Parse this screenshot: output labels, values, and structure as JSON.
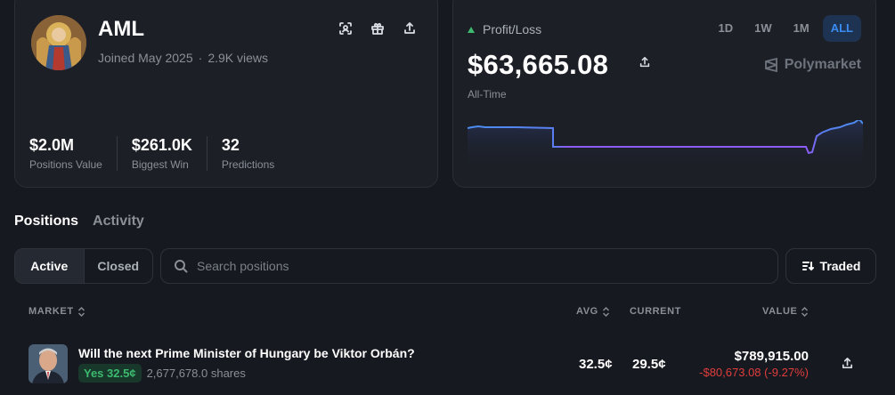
{
  "profile": {
    "username": "AML",
    "joined": "Joined May 2025",
    "views": "2.9K views",
    "stats": [
      {
        "value": "$2.0M",
        "label": "Positions Value"
      },
      {
        "value": "$261.0K",
        "label": "Biggest Win"
      },
      {
        "value": "32",
        "label": "Predictions"
      }
    ],
    "icons": [
      "scan-icon",
      "gift-icon",
      "share-icon"
    ]
  },
  "pnl": {
    "label": "Profit/Loss",
    "value": "$63,665.08",
    "sublabel": "All-Time",
    "brand": "Polymarket",
    "ranges": [
      "1D",
      "1W",
      "1M",
      "ALL"
    ],
    "active_range": "ALL",
    "colors": {
      "up": "#3dba6f",
      "line_start": "#4a8df0",
      "line_mid": "#8b5cf6",
      "active": "#3b8cf2"
    }
  },
  "tabs": {
    "positions": "Positions",
    "activity": "Activity"
  },
  "filters": {
    "active": "Active",
    "closed": "Closed"
  },
  "search": {
    "placeholder": "Search positions"
  },
  "sort": {
    "label": "Traded"
  },
  "table": {
    "headers": {
      "market": "MARKET",
      "avg": "AVG",
      "current": "CURRENT",
      "value": "VALUE"
    },
    "rows": [
      {
        "title": "Will the next Prime Minister of Hungary be Viktor Orbán?",
        "outcome": "Yes 32.5¢",
        "shares": "2,677,678.0 shares",
        "avg": "32.5¢",
        "current": "29.5¢",
        "value": "$789,915.00",
        "delta": "-$80,673.08 (-9.27%)"
      }
    ]
  }
}
